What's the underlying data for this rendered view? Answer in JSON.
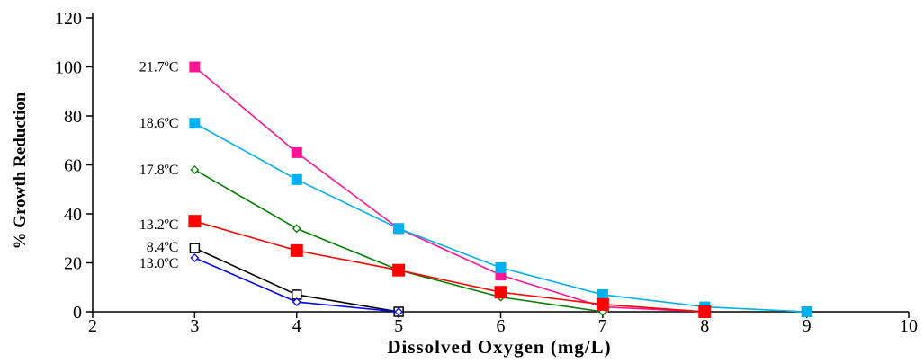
{
  "chart_data": {
    "type": "line",
    "title": "",
    "xlabel": "Dissolved Oxygen (mg/L)",
    "ylabel": "% Growth Reduction",
    "xlim": [
      2,
      10
    ],
    "ylim": [
      0,
      120
    ],
    "xticks": [
      2,
      3,
      4,
      5,
      6,
      7,
      8,
      9,
      10
    ],
    "yticks": [
      0,
      20,
      40,
      60,
      80,
      100,
      120
    ],
    "grid": false,
    "legend": "inline labels at left of each series",
    "series": [
      {
        "name": "21.7ºC",
        "color": "#ff1493",
        "marker": "square-filled",
        "x": [
          3,
          4,
          5,
          6,
          7,
          8
        ],
        "y": [
          100,
          65,
          34,
          15,
          2,
          0
        ]
      },
      {
        "name": "18.6ºC",
        "color": "#00b0f0",
        "marker": "square-filled",
        "x": [
          3,
          4,
          5,
          6,
          7,
          8,
          9
        ],
        "y": [
          77,
          54,
          34,
          18,
          7,
          2,
          0
        ]
      },
      {
        "name": "17.8ºC",
        "color": "#008000",
        "marker": "diamond-open",
        "x": [
          3,
          4,
          5,
          6,
          7
        ],
        "y": [
          58,
          34,
          17,
          6,
          0
        ]
      },
      {
        "name": "13.2ºC",
        "color": "#ff0000",
        "marker": "square-filled-large",
        "x": [
          3,
          4,
          5,
          6,
          7,
          8
        ],
        "y": [
          37,
          25,
          17,
          8,
          3,
          0
        ]
      },
      {
        "name": "8.4ºC",
        "color": "#000000",
        "marker": "square-open",
        "x": [
          3,
          4,
          5
        ],
        "y": [
          26,
          7,
          0
        ]
      },
      {
        "name": "13.0ºC",
        "color": "#0000ff",
        "marker": "diamond-open",
        "x": [
          3,
          4,
          5
        ],
        "y": [
          22,
          4,
          0
        ]
      }
    ]
  }
}
